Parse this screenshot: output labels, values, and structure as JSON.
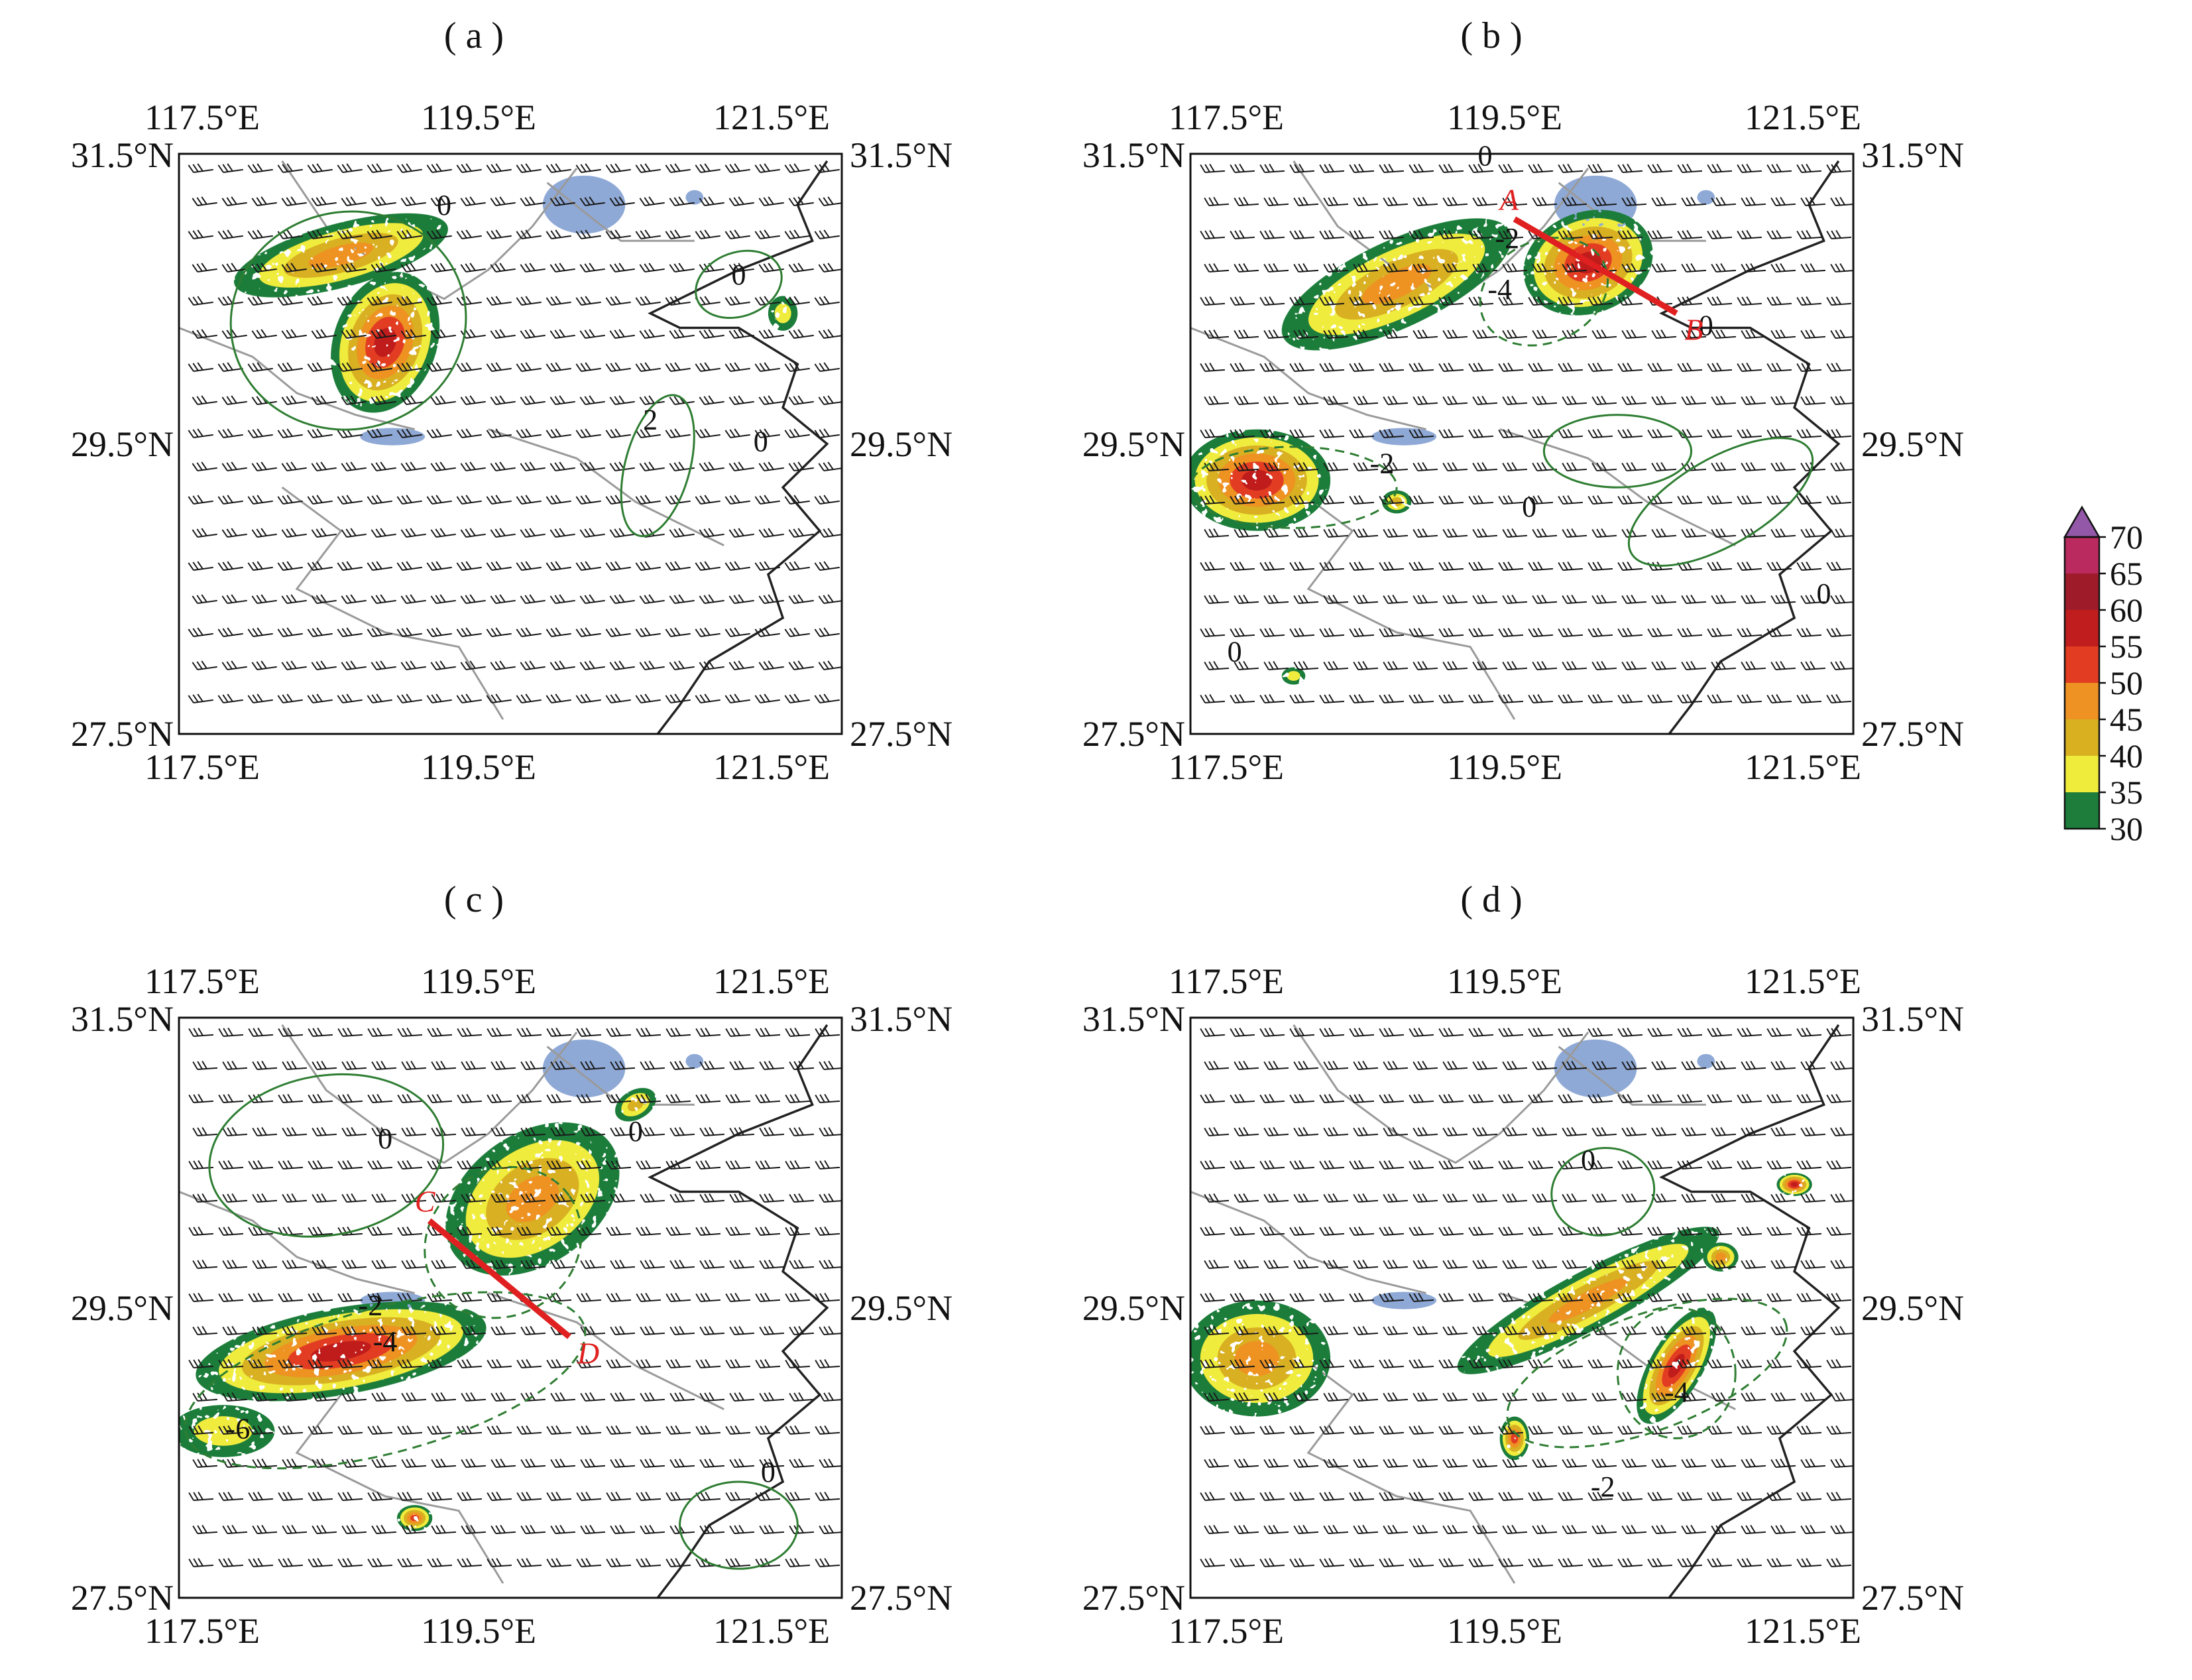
{
  "panels": [
    {
      "id": "a",
      "label": "( a )",
      "lon_ticks": [
        "117.5°E",
        "119.5°E",
        "121.5°E"
      ],
      "lat_ticks": [
        "31.5°N",
        "29.5°N",
        "27.5°N"
      ],
      "contour_labels": [
        {
          "text": "0",
          "lon": 119.3,
          "lat": 31.08
        },
        {
          "text": "0",
          "lon": 121.3,
          "lat": 30.6
        },
        {
          "text": "2",
          "lon": 120.7,
          "lat": 29.6
        },
        {
          "text": "0",
          "lon": 121.45,
          "lat": 29.45
        }
      ],
      "section_line": null,
      "storms": [
        {
          "lon": 118.6,
          "lat": 30.8,
          "rx": 0.75,
          "ry": 0.22,
          "rot": -15,
          "max": 45
        },
        {
          "lon": 118.9,
          "lat": 30.2,
          "rx": 0.35,
          "ry": 0.5,
          "rot": 20,
          "max": 55
        },
        {
          "lon": 121.6,
          "lat": 30.4,
          "rx": 0.1,
          "ry": 0.12,
          "rot": 0,
          "max": 35
        }
      ]
    },
    {
      "id": "b",
      "label": "( b )",
      "lon_ticks": [
        "117.5°E",
        "119.5°E",
        "121.5°E"
      ],
      "lat_ticks": [
        "31.5°N",
        "29.5°N",
        "27.5°N"
      ],
      "contour_labels": [
        {
          "text": "0",
          "lon": 119.5,
          "lat": 31.42
        },
        {
          "text": "-2",
          "lon": 119.65,
          "lat": 30.85
        },
        {
          "text": "-4",
          "lon": 119.6,
          "lat": 30.5
        },
        {
          "text": "-2",
          "lon": 118.8,
          "lat": 29.3
        },
        {
          "text": "0",
          "lon": 119.8,
          "lat": 29.0
        },
        {
          "text": "0",
          "lon": 121.0,
          "lat": 30.25
        },
        {
          "text": "0",
          "lon": 121.8,
          "lat": 28.4
        },
        {
          "text": "0",
          "lon": 117.8,
          "lat": 28.0
        }
      ],
      "section_line": {
        "start": "A",
        "end": "B",
        "from": [
          119.7,
          31.05
        ],
        "to": [
          120.8,
          30.4
        ]
      },
      "storms": [
        {
          "lon": 118.9,
          "lat": 30.6,
          "rx": 0.85,
          "ry": 0.3,
          "rot": -25,
          "max": 45
        },
        {
          "lon": 120.2,
          "lat": 30.75,
          "rx": 0.45,
          "ry": 0.35,
          "rot": -20,
          "max": 55
        },
        {
          "lon": 117.95,
          "lat": 29.25,
          "rx": 0.5,
          "ry": 0.35,
          "rot": 0,
          "max": 55
        },
        {
          "lon": 118.9,
          "lat": 29.1,
          "rx": 0.1,
          "ry": 0.08,
          "rot": 0,
          "max": 40
        },
        {
          "lon": 118.2,
          "lat": 27.9,
          "rx": 0.08,
          "ry": 0.06,
          "rot": 0,
          "max": 35
        }
      ]
    },
    {
      "id": "c",
      "label": "( c )",
      "lon_ticks": [
        "117.5°E",
        "119.5°E",
        "121.5°E"
      ],
      "lat_ticks": [
        "31.5°N",
        "29.5°N",
        "27.5°N"
      ],
      "contour_labels": [
        {
          "text": "0",
          "lon": 118.9,
          "lat": 30.6
        },
        {
          "text": "0",
          "lon": 120.6,
          "lat": 30.65
        },
        {
          "text": "-2",
          "lon": 118.8,
          "lat": 29.45
        },
        {
          "text": "-4",
          "lon": 118.9,
          "lat": 29.2
        },
        {
          "text": "-6",
          "lon": 117.9,
          "lat": 28.6
        },
        {
          "text": "0",
          "lon": 121.5,
          "lat": 28.3
        }
      ],
      "section_line": {
        "start": "C",
        "end": "D",
        "from": [
          119.2,
          30.1
        ],
        "to": [
          120.15,
          29.3
        ]
      },
      "storms": [
        {
          "lon": 119.9,
          "lat": 30.25,
          "rx": 0.65,
          "ry": 0.45,
          "rot": -35,
          "max": 45
        },
        {
          "lon": 118.6,
          "lat": 29.2,
          "rx": 1.0,
          "ry": 0.3,
          "rot": -10,
          "max": 55
        },
        {
          "lon": 117.8,
          "lat": 28.65,
          "rx": 0.35,
          "ry": 0.18,
          "rot": 0,
          "max": 35
        },
        {
          "lon": 119.1,
          "lat": 28.05,
          "rx": 0.12,
          "ry": 0.09,
          "rot": 0,
          "max": 50
        },
        {
          "lon": 120.6,
          "lat": 30.9,
          "rx": 0.15,
          "ry": 0.1,
          "rot": -30,
          "max": 40
        }
      ]
    },
    {
      "id": "d",
      "label": "( d )",
      "lon_ticks": [
        "117.5°E",
        "119.5°E",
        "121.5°E"
      ],
      "lat_ticks": [
        "31.5°N",
        "29.5°N",
        "27.5°N"
      ],
      "contour_labels": [
        {
          "text": "0",
          "lon": 120.2,
          "lat": 30.45
        },
        {
          "text": "-4",
          "lon": 120.8,
          "lat": 28.85
        },
        {
          "text": "-2",
          "lon": 120.3,
          "lat": 28.2
        }
      ],
      "section_line": null,
      "storms": [
        {
          "lon": 117.95,
          "lat": 29.15,
          "rx": 0.5,
          "ry": 0.4,
          "rot": 0,
          "max": 45
        },
        {
          "lon": 120.2,
          "lat": 29.55,
          "rx": 1.0,
          "ry": 0.2,
          "rot": -28,
          "max": 45
        },
        {
          "lon": 120.8,
          "lat": 29.1,
          "rx": 0.18,
          "ry": 0.45,
          "rot": 30,
          "max": 55
        },
        {
          "lon": 121.6,
          "lat": 30.35,
          "rx": 0.12,
          "ry": 0.08,
          "rot": 0,
          "max": 55
        },
        {
          "lon": 119.7,
          "lat": 28.6,
          "rx": 0.1,
          "ry": 0.15,
          "rot": 0,
          "max": 50
        },
        {
          "lon": 121.1,
          "lat": 29.85,
          "rx": 0.12,
          "ry": 0.1,
          "rot": 0,
          "max": 45
        }
      ]
    }
  ],
  "colorbar": {
    "labels": [
      "30",
      "35",
      "40",
      "45",
      "50",
      "55",
      "60",
      "65",
      "70"
    ],
    "colors": [
      "#1e7d3a",
      "#f0ec3c",
      "#d8b020",
      "#ee9224",
      "#e23c22",
      "#c01e1e",
      "#9e1c2a",
      "#ba2a5e",
      "#9358a8"
    ],
    "colors_meaning": "30-35 green, 35-40 yellow, 40-45 dark yellow, 45-50 orange, 50-55 red, 55-60 crimson, 60-65 dark red, 65-70 magenta, >70 purple"
  },
  "map_extent": {
    "lon_min": 117.5,
    "lon_max": 122.0,
    "lat_min": 27.5,
    "lat_max": 31.5
  },
  "styles": {
    "contour_positive": "#2e7d32",
    "contour_negative_dashed": "#2e7d32",
    "coastline": "#222222",
    "borders": "#9a9a9a",
    "lakes": "#8fa9d6",
    "barbs": "#1a1a1a",
    "section_line": "#e02020"
  }
}
